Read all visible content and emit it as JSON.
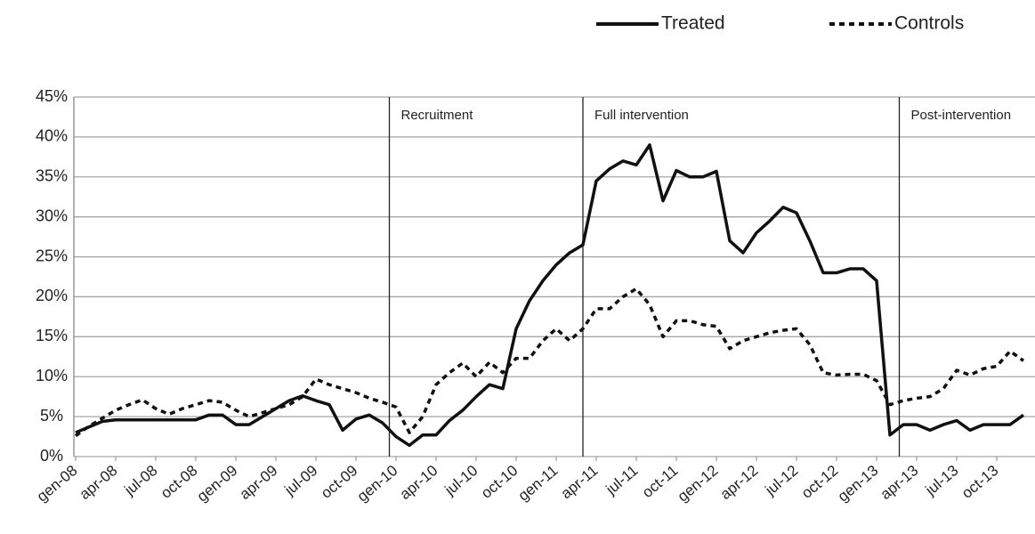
{
  "chart_data": {
    "type": "line",
    "categories": [
      "gen-08",
      null,
      null,
      "apr-08",
      null,
      null,
      "jul-08",
      null,
      null,
      "oct-08",
      null,
      null,
      "gen-09",
      null,
      null,
      "apr-09",
      null,
      null,
      "jul-09",
      null,
      null,
      "oct-09",
      null,
      null,
      "gen-10",
      null,
      null,
      "apr-10",
      null,
      null,
      "jul-10",
      null,
      null,
      "oct-10",
      null,
      null,
      "gen-11",
      null,
      null,
      "apr-11",
      null,
      null,
      "jul-11",
      null,
      null,
      "oct-11",
      null,
      null,
      "gen-12",
      null,
      null,
      "apr-12",
      null,
      null,
      "jul-12",
      null,
      null,
      "oct-12",
      null,
      null,
      "gen-13",
      null,
      null,
      "apr-13",
      null,
      null,
      "jul-13",
      null,
      null,
      "oct-13",
      null,
      null
    ],
    "series": [
      {
        "name": "Treated",
        "color": "#111111",
        "dash": "solid",
        "values": [
          3.0,
          3.7,
          4.4,
          4.6,
          4.6,
          4.6,
          4.6,
          4.6,
          4.6,
          4.6,
          5.2,
          5.2,
          4.0,
          4.0,
          5.0,
          6.0,
          7.0,
          7.6,
          7.0,
          6.5,
          3.3,
          4.7,
          5.2,
          4.2,
          2.5,
          1.4,
          2.7,
          2.7,
          4.5,
          5.8,
          7.5,
          9.0,
          8.5,
          16.0,
          19.5,
          22.0,
          24.0,
          25.5,
          26.5,
          34.5,
          36.0,
          37.0,
          36.5,
          39.0,
          32.0,
          35.8,
          35.0,
          35.0,
          35.7,
          27.0,
          25.5,
          28.0,
          29.5,
          31.2,
          30.5,
          27.0,
          23.0,
          23.0,
          23.5,
          23.5,
          22.0,
          2.7,
          4.0,
          4.0,
          3.3,
          4.0,
          4.5,
          3.3,
          4.0,
          4.0,
          4.0,
          5.2
        ]
      },
      {
        "name": "Controls",
        "color": "#111111",
        "dash": "dotted",
        "values": [
          2.6,
          3.8,
          4.8,
          5.8,
          6.5,
          7.1,
          6.0,
          5.3,
          6.0,
          6.5,
          7.0,
          6.8,
          5.8,
          5.0,
          5.5,
          6.0,
          6.5,
          7.5,
          9.7,
          9.0,
          8.5,
          8.0,
          7.3,
          6.8,
          6.2,
          3.0,
          5.0,
          9.0,
          10.5,
          11.7,
          10.0,
          11.8,
          10.5,
          12.3,
          12.3,
          14.5,
          16.0,
          14.5,
          16.0,
          18.5,
          18.5,
          20.0,
          21.0,
          19.0,
          15.0,
          17.0,
          17.0,
          16.5,
          16.3,
          13.5,
          14.5,
          15.0,
          15.5,
          15.8,
          16.0,
          14.0,
          10.5,
          10.2,
          10.3,
          10.3,
          9.5,
          6.5,
          7.0,
          7.3,
          7.5,
          8.5,
          10.8,
          10.2,
          11.0,
          11.3,
          13.2,
          12.0
        ]
      }
    ],
    "annotations": [
      {
        "text": "Recruitment",
        "x": 23.5
      },
      {
        "text": "Full intervention",
        "x": 38
      },
      {
        "text": "Post-intervention",
        "x": 61.7
      }
    ],
    "ylim": [
      0,
      45
    ],
    "yticks": [
      {
        "value": 0,
        "label": "0%"
      },
      {
        "value": 5,
        "label": "5%"
      },
      {
        "value": 10,
        "label": "10%"
      },
      {
        "value": 15,
        "label": "15%"
      },
      {
        "value": 20,
        "label": "20%"
      },
      {
        "value": 25,
        "label": "25%"
      },
      {
        "value": 30,
        "label": "30%"
      },
      {
        "value": 35,
        "label": "35%"
      },
      {
        "value": 40,
        "label": "40%"
      },
      {
        "value": 45,
        "label": "45%"
      }
    ],
    "grid": true,
    "legend": "top-right"
  }
}
